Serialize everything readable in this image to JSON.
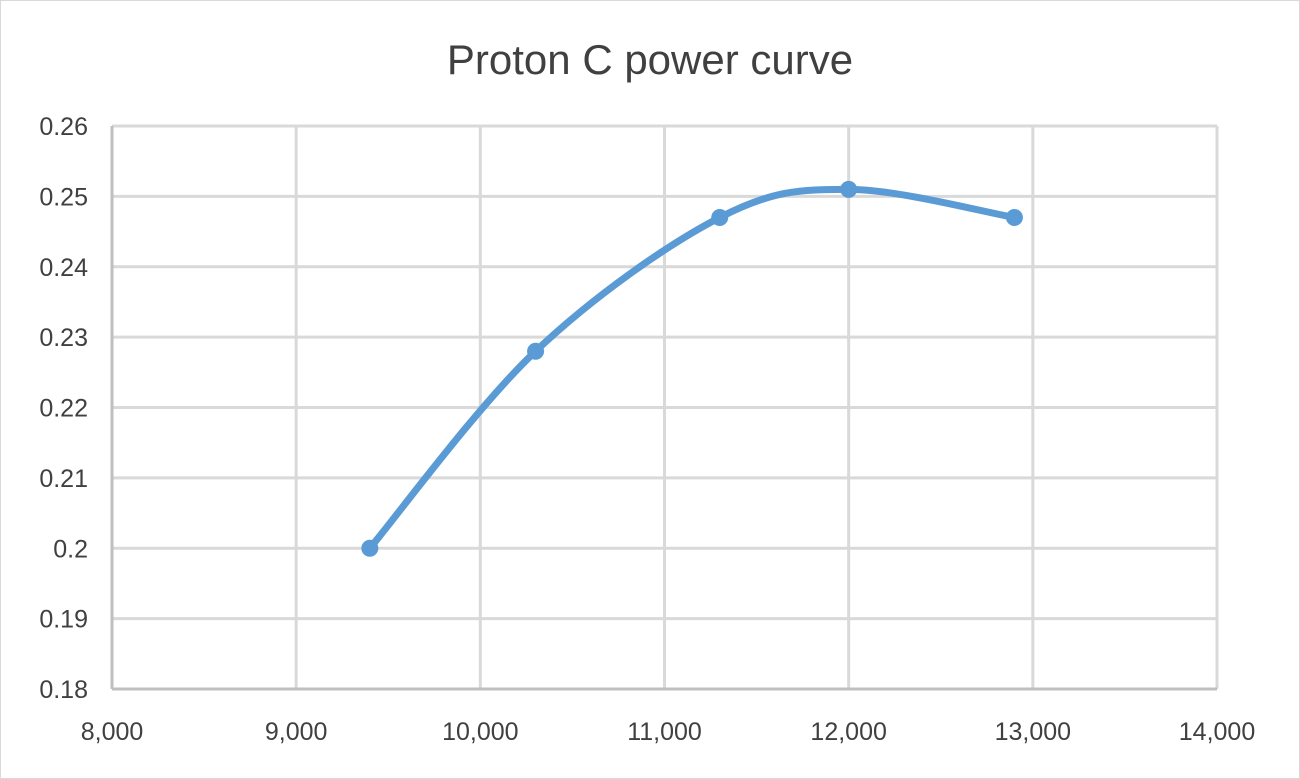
{
  "chart_data": {
    "type": "line",
    "title": "Proton C power curve",
    "xlabel": "",
    "ylabel": "",
    "xlim": [
      8000,
      14000
    ],
    "ylim": [
      0.18,
      0.26
    ],
    "x_ticks": [
      "8,000",
      "9,000",
      "10,000",
      "11,000",
      "12,000",
      "13,000",
      "14,000"
    ],
    "y_ticks": [
      "0.18",
      "0.19",
      "0.2",
      "0.21",
      "0.22",
      "0.23",
      "0.24",
      "0.25",
      "0.26"
    ],
    "x_tick_values": [
      8000,
      9000,
      10000,
      11000,
      12000,
      13000,
      14000
    ],
    "y_tick_values": [
      0.18,
      0.19,
      0.2,
      0.21,
      0.22,
      0.23,
      0.24,
      0.25,
      0.26
    ],
    "grid": true,
    "smooth": true,
    "series": [
      {
        "x": [
          9400,
          10300,
          11300,
          12000,
          12900
        ],
        "y": [
          0.2,
          0.228,
          0.247,
          0.251,
          0.247
        ]
      }
    ],
    "colors": {
      "series": "#5b9bd5",
      "grid": "#d9d9d9",
      "axis": "#bfbfbf",
      "text": "#404040"
    }
  }
}
